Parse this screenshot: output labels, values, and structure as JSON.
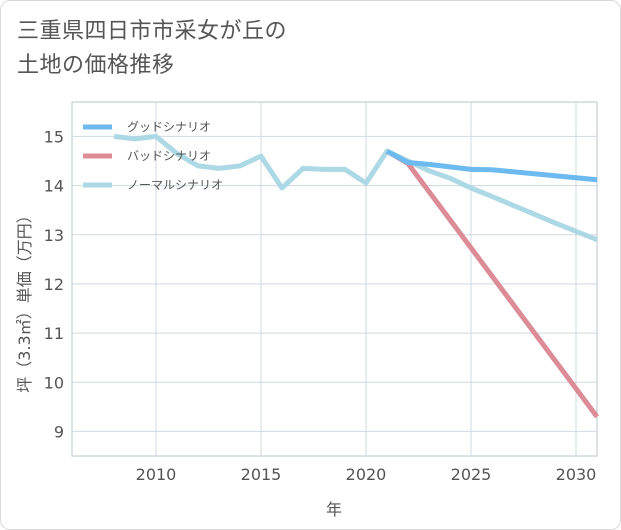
{
  "header": {
    "title_line1": "三重県四日市市采女が丘の",
    "title_line2": "土地の価格推移"
  },
  "chart_data": {
    "type": "line",
    "title": "三重県四日市市采女が丘の土地の価格推移",
    "xlabel": "年",
    "ylabel": "坪（3.3㎡）単価（万円）",
    "xlim": [
      2006,
      2031
    ],
    "ylim": [
      8.5,
      15.7
    ],
    "xticks": [
      2010,
      2015,
      2020,
      2025,
      2030
    ],
    "yticks": [
      9,
      10,
      11,
      12,
      13,
      14,
      15
    ],
    "grid": true,
    "legend_position": "top-left",
    "series": [
      {
        "name": "ノーマルシナリオ",
        "color": "#add8e6",
        "x": [
          2008,
          2009,
          2010,
          2011,
          2012,
          2013,
          2014,
          2015,
          2016,
          2017,
          2018,
          2019,
          2020,
          2021,
          2022,
          2023,
          2024,
          2025,
          2026,
          2027,
          2028,
          2029,
          2030,
          2031
        ],
        "values": [
          15.0,
          14.95,
          15.0,
          14.65,
          14.4,
          14.35,
          14.4,
          14.6,
          13.95,
          14.35,
          14.33,
          14.33,
          14.05,
          14.7,
          14.5,
          14.3,
          14.15,
          13.95,
          13.78,
          13.6,
          13.42,
          13.24,
          13.07,
          12.9
        ]
      },
      {
        "name": "バッドシナリオ",
        "color": "#dc8c96",
        "x": [
          2021,
          2022,
          2031
        ],
        "values": [
          14.7,
          14.45,
          9.3
        ]
      },
      {
        "name": "グッドシナリオ",
        "color": "#6cbaf0",
        "x": [
          2021,
          2022,
          2023,
          2024,
          2025,
          2026,
          2027,
          2028,
          2029,
          2030,
          2031
        ],
        "values": [
          14.7,
          14.47,
          14.43,
          14.38,
          14.33,
          14.32,
          14.28,
          14.24,
          14.2,
          14.16,
          14.12
        ]
      }
    ],
    "legend_order": [
      "グッドシナリオ",
      "バッドシナリオ",
      "ノーマルシナリオ"
    ]
  }
}
